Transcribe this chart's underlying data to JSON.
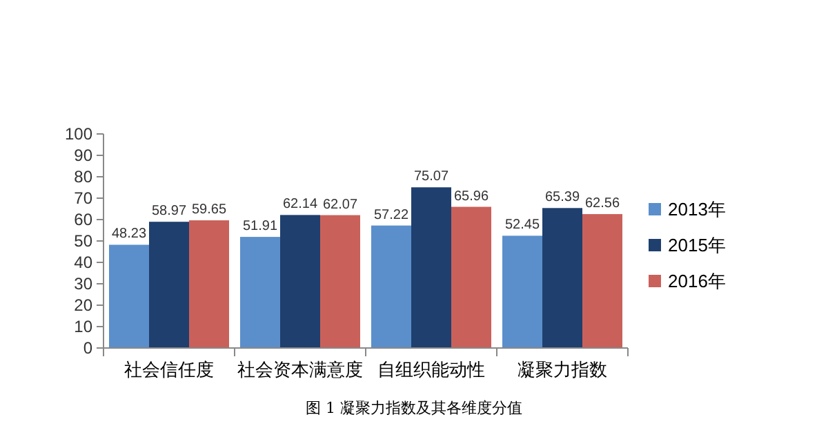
{
  "chart_data": {
    "type": "bar",
    "categories": [
      "社会信任度",
      "社会资本满意度",
      "自组织能动性",
      "凝聚力指数"
    ],
    "series": [
      {
        "name": "2013年",
        "color": "#5b8fcb",
        "values": [
          48.23,
          51.91,
          57.22,
          52.45
        ]
      },
      {
        "name": "2015年",
        "color": "#1f3f6e",
        "values": [
          58.97,
          62.14,
          75.07,
          65.39
        ]
      },
      {
        "name": "2016年",
        "color": "#c9615a",
        "values": [
          59.65,
          62.07,
          65.96,
          62.56
        ]
      }
    ],
    "ylim": [
      0,
      100
    ],
    "yticks": [
      0,
      10,
      20,
      30,
      40,
      50,
      60,
      70,
      80,
      90,
      100
    ],
    "data_labels": true,
    "legend": "right",
    "annotations": [
      "图 1 凝聚力指数及其各维度分值"
    ]
  }
}
